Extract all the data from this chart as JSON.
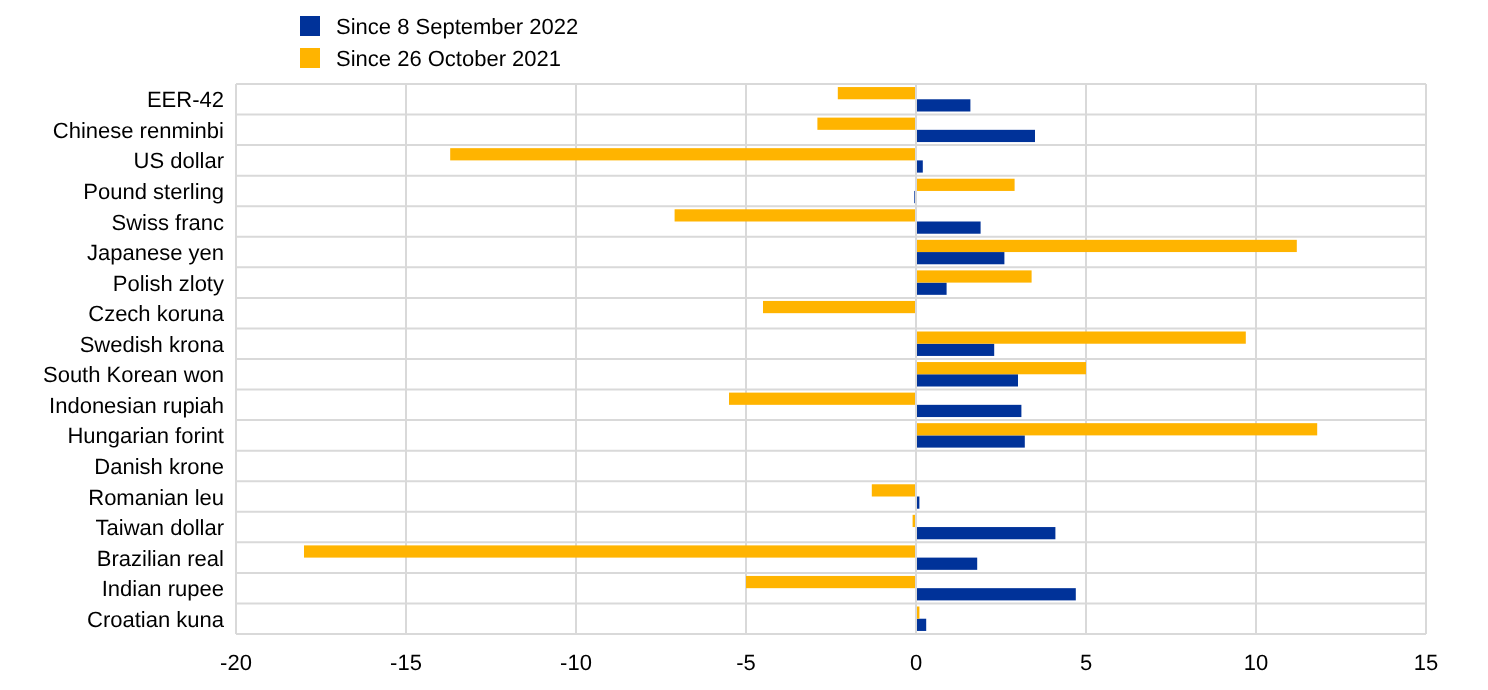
{
  "chart_data": {
    "type": "bar",
    "orientation": "horizontal",
    "categories": [
      "EER-42",
      "Chinese renminbi",
      "US dollar",
      "Pound sterling",
      "Swiss franc",
      "Japanese yen",
      "Polish zloty",
      "Czech koruna",
      "Swedish krona",
      "South Korean won",
      "Indonesian rupiah",
      "Hungarian forint",
      "Danish krone",
      "Romanian leu",
      "Taiwan dollar",
      "Brazilian real",
      "Indian rupee",
      "Croatian kuna"
    ],
    "series": [
      {
        "name": "Since 8 September 2022",
        "color": "#003299",
        "values": [
          1.6,
          3.5,
          0.2,
          -0.05,
          1.9,
          2.6,
          0.9,
          0,
          2.3,
          3.0,
          3.1,
          3.2,
          0,
          0.1,
          4.1,
          1.8,
          4.7,
          0.3
        ]
      },
      {
        "name": "Since 26 October 2021",
        "color": "#ffb400",
        "values": [
          -2.3,
          -2.9,
          -13.7,
          2.9,
          -7.1,
          11.2,
          3.4,
          -4.5,
          9.7,
          5.0,
          -5.5,
          11.8,
          0,
          -1.3,
          -0.1,
          -18.0,
          -5.0,
          0.1
        ]
      }
    ],
    "xlim": [
      -20,
      15
    ],
    "xticks": [
      -20,
      -15,
      -10,
      -5,
      0,
      5,
      10,
      15
    ],
    "grid": true,
    "legend": "top left"
  }
}
